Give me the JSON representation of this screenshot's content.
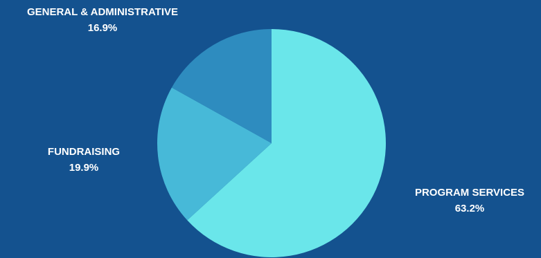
{
  "chart_data": {
    "type": "pie",
    "slices": [
      {
        "label": "PROGRAM SERVICES",
        "value": 63.2,
        "display": "63.2%",
        "color": "#6ae6ea"
      },
      {
        "label": "FUNDRAISING",
        "value": 19.9,
        "display": "19.9%",
        "color": "#47b9d8"
      },
      {
        "label": "GENERAL & ADMINISTRATIVE",
        "value": 16.9,
        "display": "16.9%",
        "color": "#2e8cbf"
      }
    ],
    "start": "12 o'clock",
    "direction": "clockwise",
    "legend": "none",
    "background": "#14528f"
  }
}
